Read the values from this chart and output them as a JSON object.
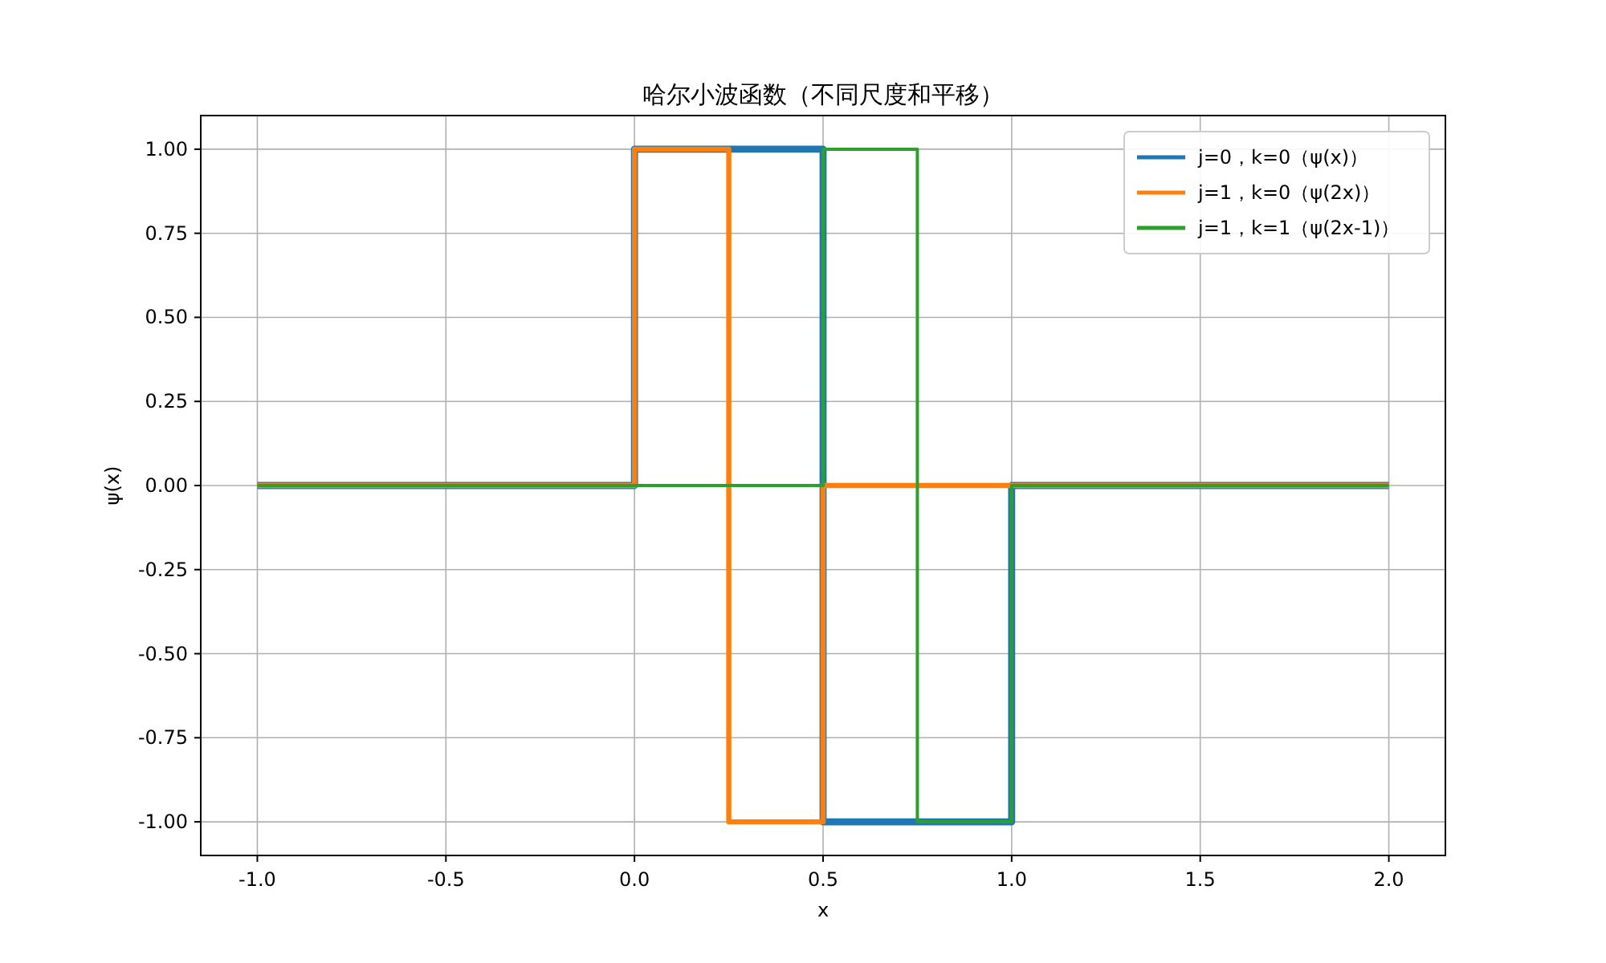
{
  "chart_data": {
    "type": "line",
    "title": "哈尔小波函数（不同尺度和平移）",
    "xlabel": "x",
    "ylabel": "ψ(x)",
    "xlim": [
      -1.15,
      2.15
    ],
    "ylim": [
      -1.1,
      1.1
    ],
    "xticks": [
      {
        "value": -1,
        "label": "-1.0"
      },
      {
        "value": -0.5,
        "label": "-0.5"
      },
      {
        "value": 0,
        "label": "0.0"
      },
      {
        "value": 0.5,
        "label": "0.5"
      },
      {
        "value": 1,
        "label": "1.0"
      },
      {
        "value": 1.5,
        "label": "1.5"
      },
      {
        "value": 2,
        "label": "2.0"
      }
    ],
    "yticks": [
      {
        "value": -1,
        "label": "-1.00"
      },
      {
        "value": -0.75,
        "label": "-0.75"
      },
      {
        "value": -0.5,
        "label": "-0.50"
      },
      {
        "value": -0.25,
        "label": "-0.25"
      },
      {
        "value": 0,
        "label": "0.00"
      },
      {
        "value": 0.25,
        "label": "0.25"
      },
      {
        "value": 0.5,
        "label": "0.50"
      },
      {
        "value": 0.75,
        "label": "0.75"
      },
      {
        "value": 1,
        "label": "1.00"
      }
    ],
    "grid": true,
    "legend": "top right",
    "series": [
      {
        "name": "j=0，k=0（ψ(x)）",
        "color": "#1f77b4",
        "x": [
          -1,
          0,
          0,
          0.5,
          0.5,
          1,
          1,
          2
        ],
        "values": [
          0,
          0,
          1,
          1,
          -1,
          -1,
          0,
          0
        ]
      },
      {
        "name": "j=1，k=0（ψ(2x)）",
        "color": "#ff7f0e",
        "x": [
          -1,
          0,
          0,
          0.25,
          0.25,
          0.5,
          0.5,
          2
        ],
        "values": [
          0,
          0,
          1,
          1,
          -1,
          -1,
          0,
          0
        ]
      },
      {
        "name": "j=1，k=1（ψ(2x-1)）",
        "color": "#2ca02c",
        "x": [
          -1,
          0.5,
          0.5,
          0.75,
          0.75,
          1,
          1,
          2
        ],
        "values": [
          0,
          0,
          1,
          1,
          -1,
          -1,
          0,
          0
        ]
      }
    ]
  }
}
